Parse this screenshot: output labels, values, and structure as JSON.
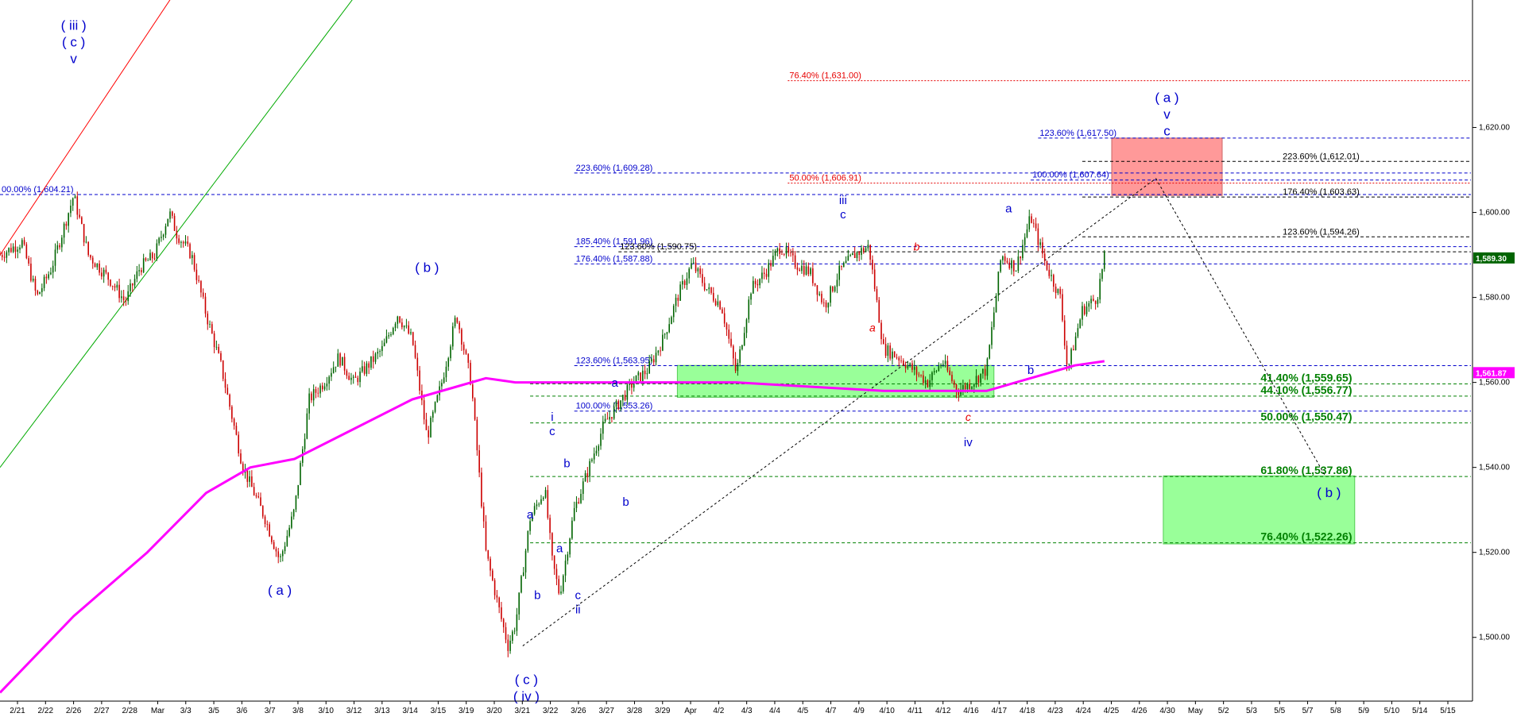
{
  "chart_data": {
    "type": "candlestick",
    "y_range": [
      1485,
      1650
    ],
    "y_ticks": [
      1500,
      1520,
      1540,
      1560,
      1580,
      1600,
      1620
    ],
    "y_tick_labels": [
      "1,500.00",
      "1,520.00",
      "1,540.00",
      "1,560.00",
      "1,580.00",
      "1,600.00",
      "1,620.00"
    ],
    "x_tick_labels": [
      "2/21",
      "2/22",
      "2/26",
      "2/27",
      "2/28",
      "Mar",
      "3/3",
      "3/5",
      "3/6",
      "3/7",
      "3/8",
      "3/10",
      "3/12",
      "3/13",
      "3/14",
      "3/15",
      "3/19",
      "3/20",
      "3/21",
      "3/22",
      "3/26",
      "3/27",
      "3/28",
      "3/29",
      "Apr",
      "4/2",
      "4/3",
      "4/4",
      "4/5",
      "4/7",
      "4/9",
      "4/10",
      "4/11",
      "4/12",
      "4/16",
      "4/17",
      "4/18",
      "4/23",
      "4/24",
      "4/25",
      "4/26",
      "4/30",
      "May",
      "5/2",
      "5/3",
      "5/5",
      "5/7",
      "5/8",
      "5/9",
      "5/10",
      "5/14",
      "5/15"
    ],
    "price_path": [
      [
        0,
        1590
      ],
      [
        3,
        1593
      ],
      [
        5,
        1580
      ],
      [
        7,
        1587
      ],
      [
        10,
        1604
      ],
      [
        12,
        1590
      ],
      [
        15,
        1584
      ],
      [
        17,
        1579
      ],
      [
        19,
        1587
      ],
      [
        21,
        1590
      ],
      [
        23,
        1600
      ],
      [
        24,
        1595
      ],
      [
        26,
        1590
      ],
      [
        28,
        1576
      ],
      [
        30,
        1564
      ],
      [
        33,
        1540
      ],
      [
        36,
        1528
      ],
      [
        38,
        1518
      ],
      [
        40,
        1530
      ],
      [
        42,
        1556
      ],
      [
        44,
        1560
      ],
      [
        46,
        1566
      ],
      [
        48,
        1560
      ],
      [
        50,
        1564
      ],
      [
        52,
        1568
      ],
      [
        54,
        1576
      ],
      [
        56,
        1570
      ],
      [
        58,
        1547
      ],
      [
        60,
        1560
      ],
      [
        62,
        1576
      ],
      [
        64,
        1560
      ],
      [
        66,
        1520
      ],
      [
        68,
        1505
      ],
      [
        69,
        1498
      ],
      [
        70,
        1503
      ],
      [
        72,
        1528
      ],
      [
        74,
        1535
      ],
      [
        75,
        1518
      ],
      [
        76,
        1510
      ],
      [
        78,
        1530
      ],
      [
        80,
        1540
      ],
      [
        82,
        1550
      ],
      [
        84,
        1555
      ],
      [
        86,
        1560
      ],
      [
        88,
        1563
      ],
      [
        90,
        1570
      ],
      [
        92,
        1580
      ],
      [
        94,
        1588
      ],
      [
        96,
        1582
      ],
      [
        98,
        1578
      ],
      [
        100,
        1562
      ],
      [
        102,
        1582
      ],
      [
        104,
        1586
      ],
      [
        106,
        1592
      ],
      [
        108,
        1588
      ],
      [
        110,
        1586
      ],
      [
        112,
        1578
      ],
      [
        114,
        1586
      ],
      [
        116,
        1590
      ],
      [
        118,
        1592
      ],
      [
        120,
        1568
      ],
      [
        122,
        1566
      ],
      [
        124,
        1563
      ],
      [
        126,
        1560
      ],
      [
        128,
        1565
      ],
      [
        130,
        1558
      ],
      [
        132,
        1560
      ],
      [
        134,
        1563
      ],
      [
        136,
        1590
      ],
      [
        138,
        1587
      ],
      [
        140,
        1599
      ],
      [
        142,
        1588
      ],
      [
        144,
        1580
      ],
      [
        145,
        1563
      ],
      [
        147,
        1577
      ],
      [
        149,
        1580
      ],
      [
        150,
        1589.3
      ]
    ],
    "moving_average": {
      "color": "#ff00ff",
      "last_value": "1,561.87",
      "points": [
        [
          0,
          1487
        ],
        [
          10,
          1505
        ],
        [
          20,
          1520
        ],
        [
          28,
          1534
        ],
        [
          34,
          1540
        ],
        [
          40,
          1542
        ],
        [
          48,
          1549
        ],
        [
          56,
          1556
        ],
        [
          62,
          1559
        ],
        [
          66,
          1561
        ],
        [
          70,
          1560
        ],
        [
          78,
          1560
        ],
        [
          86,
          1560
        ],
        [
          92,
          1560
        ],
        [
          100,
          1560
        ],
        [
          110,
          1559
        ],
        [
          120,
          1558
        ],
        [
          125,
          1558
        ],
        [
          130,
          1558
        ],
        [
          134,
          1558
        ],
        [
          138,
          1560
        ],
        [
          142,
          1562
        ],
        [
          146,
          1564
        ],
        [
          150,
          1565
        ]
      ]
    },
    "last_price_label": "1,589.30",
    "levels": [
      {
        "label": "76.40% (1,631.00)",
        "value": 1631,
        "color": "#e60000",
        "style": "dotted",
        "x0": 107,
        "x1": 200,
        "label_x": 107
      },
      {
        "label": "123.60% (1,617.50)",
        "value": 1617.5,
        "color": "#0000cc",
        "style": "dashed",
        "x0": 141,
        "x1": 200,
        "label_x": 141
      },
      {
        "label": "223.60% (1,612.01)",
        "value": 1612.01,
        "color": "#000000",
        "style": "dashed",
        "x0": 147,
        "x1": 200,
        "label_x": 174
      },
      {
        "label": "223.60% (1,609.28)",
        "value": 1609.28,
        "color": "#0000cc",
        "style": "dashed",
        "x0": 78,
        "x1": 200,
        "label_x": 78
      },
      {
        "label": "100.00% (1,607.64)",
        "value": 1607.64,
        "color": "#0000cc",
        "style": "dashed",
        "x0": 140,
        "x1": 200,
        "label_x": 140
      },
      {
        "label": "50.00% (1,606.91)",
        "value": 1606.91,
        "color": "#e60000",
        "style": "dotted",
        "x0": 107,
        "x1": 200,
        "label_x": 107
      },
      {
        "label": "00.00% (1,604.21)",
        "value": 1604.21,
        "color": "#0000cc",
        "style": "dashed",
        "x0": 0,
        "x1": 200,
        "label_x": 0
      },
      {
        "label": "176.40% (1,603.63)",
        "value": 1603.63,
        "color": "#000000",
        "style": "dashed",
        "x0": 147,
        "x1": 200,
        "label_x": 174
      },
      {
        "label": "123.60% (1,594.26)",
        "value": 1594.26,
        "color": "#000000",
        "style": "dashed",
        "x0": 147,
        "x1": 200,
        "label_x": 174
      },
      {
        "label": "185.40% (1,591.96)",
        "value": 1591.96,
        "color": "#0000cc",
        "style": "dashed",
        "x0": 78,
        "x1": 200,
        "label_x": 78
      },
      {
        "label": "123.60% (1,590.75)",
        "value": 1590.75,
        "color": "#000000",
        "style": "dashed",
        "x0": 84,
        "x1": 200,
        "label_x": 84
      },
      {
        "label": "176.40% (1,587.88)",
        "value": 1587.88,
        "color": "#0000cc",
        "style": "dashed",
        "x0": 78,
        "x1": 200,
        "label_x": 78
      },
      {
        "label": "123.60% (1,563.95)",
        "value": 1563.95,
        "color": "#0000cc",
        "style": "dashed",
        "x0": 78,
        "x1": 200,
        "label_x": 78
      },
      {
        "label": "41.40% (1,559.65)",
        "value": 1559.65,
        "color": "#008000",
        "style": "dashed",
        "x0": 72,
        "x1": 200,
        "label_x": 171,
        "large": true
      },
      {
        "label": "44.10% (1,556.77)",
        "value": 1556.77,
        "color": "#008000",
        "style": "dashed",
        "x0": 72,
        "x1": 200,
        "label_x": 171,
        "large": true
      },
      {
        "label": "100.00% (1,553.26)",
        "value": 1553.26,
        "color": "#0000cc",
        "style": "dashed",
        "x0": 78,
        "x1": 200,
        "label_x": 78
      },
      {
        "label": "50.00% (1,550.47)",
        "value": 1550.47,
        "color": "#008000",
        "style": "dashed",
        "x0": 72,
        "x1": 200,
        "label_x": 171,
        "large": true
      },
      {
        "label": "61.80% (1,537.86)",
        "value": 1537.86,
        "color": "#008000",
        "style": "dashed",
        "x0": 72,
        "x1": 200,
        "label_x": 171,
        "large": true
      },
      {
        "label": "76.40% (1,522.26)",
        "value": 1522.26,
        "color": "#008000",
        "style": "dashed",
        "x0": 72,
        "x1": 200,
        "label_x": 171,
        "large": true
      }
    ],
    "zones": [
      {
        "x0": 92,
        "x1": 135,
        "y0": 1556.5,
        "y1": 1564,
        "fill": "#99ff99",
        "stroke": "#55cc55"
      },
      {
        "x0": 158,
        "x1": 184,
        "y0": 1522,
        "y1": 1538,
        "fill": "#99ff99",
        "stroke": "#55cc55"
      },
      {
        "x0": 151,
        "x1": 166,
        "y0": 1604,
        "y1": 1617.5,
        "fill": "#ff9999",
        "stroke": "#cc6666"
      }
    ],
    "trend_lines": [
      {
        "x0": 0,
        "y0": 1590,
        "x1": 25,
        "y1": 1655,
        "color": "#ff0000",
        "dash": ""
      },
      {
        "x0": 0,
        "y0": 1540,
        "x1": 50,
        "y1": 1655,
        "color": "#00aa00",
        "dash": ""
      },
      {
        "x0": 71,
        "y0": 1498,
        "x1": 157,
        "y1": 1608,
        "color": "#000000",
        "dash": "3,3"
      },
      {
        "x0": 157,
        "y0": 1608,
        "x1": 180,
        "y1": 1538,
        "color": "#000000",
        "dash": "3,3"
      }
    ],
    "wave_labels": [
      {
        "lines": [
          "( iii )",
          "( c )",
          "v"
        ],
        "x": 10,
        "y": 1643,
        "color": "#0000cc",
        "size": "lg"
      },
      {
        "lines": [
          "( b )"
        ],
        "x": 58,
        "y": 1586,
        "color": "#0000cc",
        "size": "lg"
      },
      {
        "lines": [
          "( a )"
        ],
        "x": 38,
        "y": 1510,
        "color": "#0000cc",
        "size": "lg"
      },
      {
        "lines": [
          "( c )",
          "( iv )"
        ],
        "x": 71.5,
        "y": 1489,
        "color": "#0000cc",
        "size": "lg"
      },
      {
        "lines": [
          "b"
        ],
        "x": 73,
        "y": 1509,
        "color": "#0000cc",
        "size": "sm"
      },
      {
        "lines": [
          "a"
        ],
        "x": 72,
        "y": 1528,
        "color": "#0000cc",
        "size": "sm"
      },
      {
        "lines": [
          "i",
          "c"
        ],
        "x": 75,
        "y": 1551,
        "color": "#0000cc",
        "size": "sm"
      },
      {
        "lines": [
          "b"
        ],
        "x": 77,
        "y": 1540,
        "color": "#0000cc",
        "size": "sm"
      },
      {
        "lines": [
          "a"
        ],
        "x": 76,
        "y": 1520,
        "color": "#0000cc",
        "size": "sm"
      },
      {
        "lines": [
          "c",
          "ii"
        ],
        "x": 78.5,
        "y": 1509,
        "color": "#0000cc",
        "size": "sm"
      },
      {
        "lines": [
          "a"
        ],
        "x": 83.5,
        "y": 1559,
        "color": "#0000cc",
        "size": "sm"
      },
      {
        "lines": [
          "b"
        ],
        "x": 85,
        "y": 1531,
        "color": "#0000cc",
        "size": "sm"
      },
      {
        "lines": [
          "iii",
          "c"
        ],
        "x": 114.5,
        "y": 1602,
        "color": "#0000cc",
        "size": "sm"
      },
      {
        "lines": [
          "b"
        ],
        "x": 124.5,
        "y": 1591,
        "color": "#e60000",
        "size": "it"
      },
      {
        "lines": [
          "a"
        ],
        "x": 118.5,
        "y": 1572,
        "color": "#e60000",
        "size": "it"
      },
      {
        "lines": [
          "c"
        ],
        "x": 131.5,
        "y": 1551,
        "color": "#e60000",
        "size": "it"
      },
      {
        "lines": [
          "iv"
        ],
        "x": 131.5,
        "y": 1545,
        "color": "#0000cc",
        "size": "sm"
      },
      {
        "lines": [
          "a"
        ],
        "x": 137,
        "y": 1600,
        "color": "#0000cc",
        "size": "sm"
      },
      {
        "lines": [
          "b"
        ],
        "x": 140,
        "y": 1562,
        "color": "#0000cc",
        "size": "sm"
      },
      {
        "lines": [
          "( a )",
          "v",
          "c"
        ],
        "x": 158.5,
        "y": 1626,
        "color": "#0000cc",
        "size": "lg"
      },
      {
        "lines": [
          "( b )"
        ],
        "x": 180.5,
        "y": 1533,
        "color": "#0000cc",
        "size": "lg"
      }
    ]
  }
}
